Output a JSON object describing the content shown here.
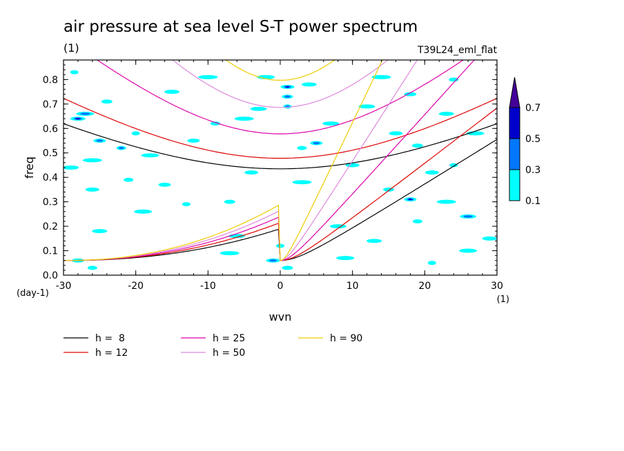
{
  "chart_data": {
    "type": "line",
    "title": "air pressure at sea level S-T power spectrum",
    "subtitle_left": "(1)",
    "subtitle_right": "T39L24_eml_flat",
    "xlabel": "wvn",
    "ylabel": "freq",
    "x_unit": "(1)",
    "y_unit": "(day-1)",
    "xlim": [
      -30,
      30
    ],
    "ylim": [
      0,
      0.88
    ],
    "xticks": [
      -30,
      -20,
      -10,
      0,
      10,
      20,
      30
    ],
    "yticks": [
      0.0,
      0.1,
      0.2,
      0.3,
      0.4,
      0.5,
      0.6,
      0.7,
      0.8
    ],
    "ytick_labels": [
      "0.0",
      "0.1",
      "0.2",
      "0.3",
      "0.4",
      "0.5",
      "0.6",
      "0.7",
      "0.8"
    ],
    "series": [
      {
        "name": "h =  8",
        "color": "#000000",
        "ig_min": 0.435,
        "ig_a": 0.0147,
        "kelvin_slope": 0.0184,
        "kelvin_floor": 0.06
      },
      {
        "name": "h = 12",
        "color": "#dd0000",
        "ig_min": 0.478,
        "ig_a": 0.0181,
        "kelvin_slope": 0.0227,
        "kelvin_floor": 0.06
      },
      {
        "name": "h = 25",
        "color": "#dd00aa",
        "ig_min": 0.578,
        "ig_a": 0.0262,
        "kelvin_slope": 0.0327,
        "kelvin_floor": 0.06
      },
      {
        "name": "h = 50",
        "color": "#dd88dd",
        "ig_min": 0.686,
        "ig_a": 0.037,
        "kelvin_slope": 0.0463,
        "kelvin_floor": 0.06
      },
      {
        "name": "h = 90",
        "color": "#eecc00",
        "ig_min": 0.797,
        "ig_a": 0.0497,
        "kelvin_slope": 0.0621,
        "kelvin_floor": 0.06
      }
    ],
    "colorbar": {
      "levels": [
        "0.1",
        "0.3",
        "0.5",
        "0.7"
      ],
      "colors": [
        "#00ffff",
        "#0077ff",
        "#0000cc",
        "#440099"
      ]
    },
    "contour_blobs": [
      {
        "x": -28.5,
        "y": 0.83,
        "level": 0
      },
      {
        "x": -27,
        "y": 0.66,
        "level": 1
      },
      {
        "x": -28,
        "y": 0.64,
        "level": 2
      },
      {
        "x": -25,
        "y": 0.55,
        "level": 1
      },
      {
        "x": -22,
        "y": 0.52,
        "level": 1
      },
      {
        "x": -26,
        "y": 0.47,
        "level": 0
      },
      {
        "x": -29,
        "y": 0.44,
        "level": 0
      },
      {
        "x": -26,
        "y": 0.35,
        "level": 0
      },
      {
        "x": -24,
        "y": 0.71,
        "level": 0
      },
      {
        "x": -20,
        "y": 0.58,
        "level": 0
      },
      {
        "x": -18,
        "y": 0.49,
        "level": 0
      },
      {
        "x": -15,
        "y": 0.75,
        "level": 0
      },
      {
        "x": -12,
        "y": 0.55,
        "level": 0
      },
      {
        "x": -9,
        "y": 0.62,
        "level": 0
      },
      {
        "x": -5,
        "y": 0.64,
        "level": 0
      },
      {
        "x": -3,
        "y": 0.68,
        "level": 0
      },
      {
        "x": 1,
        "y": 0.77,
        "level": 2
      },
      {
        "x": 1,
        "y": 0.73,
        "level": 1
      },
      {
        "x": 1,
        "y": 0.69,
        "level": 1
      },
      {
        "x": -2,
        "y": 0.81,
        "level": 0
      },
      {
        "x": 4,
        "y": 0.78,
        "level": 0
      },
      {
        "x": 5,
        "y": 0.54,
        "level": 1
      },
      {
        "x": 3,
        "y": 0.52,
        "level": 0
      },
      {
        "x": 3,
        "y": 0.38,
        "level": 0
      },
      {
        "x": 7,
        "y": 0.62,
        "level": 0
      },
      {
        "x": -4,
        "y": 0.42,
        "level": 0
      },
      {
        "x": -7,
        "y": 0.3,
        "level": 0
      },
      {
        "x": -13,
        "y": 0.29,
        "level": 0
      },
      {
        "x": -19,
        "y": 0.26,
        "level": 0
      },
      {
        "x": -25,
        "y": 0.18,
        "level": 0
      },
      {
        "x": -28,
        "y": 0.06,
        "level": 0
      },
      {
        "x": -26,
        "y": 0.03,
        "level": 0
      },
      {
        "x": -7,
        "y": 0.09,
        "level": 0
      },
      {
        "x": -6,
        "y": 0.16,
        "level": 0
      },
      {
        "x": -1,
        "y": 0.06,
        "level": 1
      },
      {
        "x": 1,
        "y": 0.03,
        "level": 0
      },
      {
        "x": 0,
        "y": 0.12,
        "level": 0
      },
      {
        "x": 9,
        "y": 0.07,
        "level": 0
      },
      {
        "x": 13,
        "y": 0.14,
        "level": 0
      },
      {
        "x": 18,
        "y": 0.31,
        "level": 2
      },
      {
        "x": 19,
        "y": 0.22,
        "level": 0
      },
      {
        "x": 23,
        "y": 0.3,
        "level": 0
      },
      {
        "x": 26,
        "y": 0.24,
        "level": 1
      },
      {
        "x": 21,
        "y": 0.42,
        "level": 0
      },
      {
        "x": 19,
        "y": 0.53,
        "level": 0
      },
      {
        "x": 24,
        "y": 0.45,
        "level": 0
      },
      {
        "x": 27,
        "y": 0.58,
        "level": 0
      },
      {
        "x": 23,
        "y": 0.66,
        "level": 0
      },
      {
        "x": 18,
        "y": 0.74,
        "level": 0
      },
      {
        "x": 24,
        "y": 0.8,
        "level": 0
      },
      {
        "x": 14,
        "y": 0.81,
        "level": 0
      },
      {
        "x": 12,
        "y": 0.69,
        "level": 0
      },
      {
        "x": 10,
        "y": 0.45,
        "level": 0
      },
      {
        "x": 15,
        "y": 0.35,
        "level": 0
      },
      {
        "x": 21,
        "y": 0.05,
        "level": 0
      },
      {
        "x": 26,
        "y": 0.1,
        "level": 0
      },
      {
        "x": 29,
        "y": 0.15,
        "level": 0
      },
      {
        "x": -16,
        "y": 0.37,
        "level": 0
      },
      {
        "x": -21,
        "y": 0.39,
        "level": 0
      },
      {
        "x": -10,
        "y": 0.81,
        "level": 0
      },
      {
        "x": 8,
        "y": 0.2,
        "level": 0
      },
      {
        "x": 16,
        "y": 0.58,
        "level": 0
      }
    ]
  }
}
